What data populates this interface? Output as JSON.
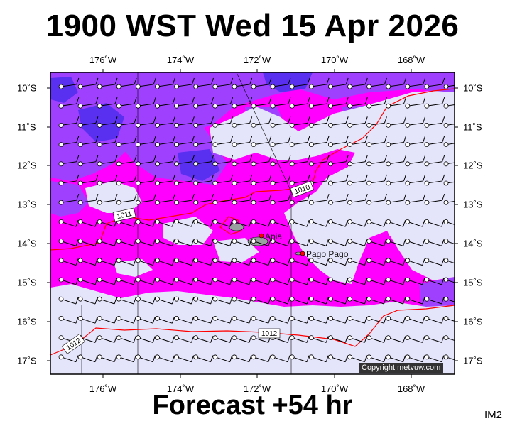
{
  "title": "1900 WST Wed 15 Apr 2026",
  "subtitle": "Forecast +54 hr",
  "image_code": "IM2",
  "copyright": "Copyright metvuw.com",
  "longitude_labels": [
    "176˚W",
    "174˚W",
    "172˚W",
    "170˚W",
    "168˚W"
  ],
  "latitude_labels": [
    "10˚S",
    "11˚S",
    "12˚S",
    "13˚S",
    "14˚S",
    "15˚S",
    "16˚S",
    "17˚S"
  ],
  "cities": [
    {
      "name": "Apia",
      "lon": -171.77,
      "lat": -13.83
    },
    {
      "name": "Pago Pago",
      "lon": -170.7,
      "lat": -14.28
    }
  ],
  "isobars": [
    {
      "label": "1011",
      "color": "#ff0000"
    },
    {
      "label": "1010",
      "color": "#ff0000"
    },
    {
      "label": "1012",
      "color": "#ff0000"
    }
  ],
  "colors": {
    "calm": "#e4e4fa",
    "moderate": "#ff00ff",
    "strong": "#a040ff",
    "very_strong": "#5a30f0",
    "isobar": "#ff0000"
  }
}
